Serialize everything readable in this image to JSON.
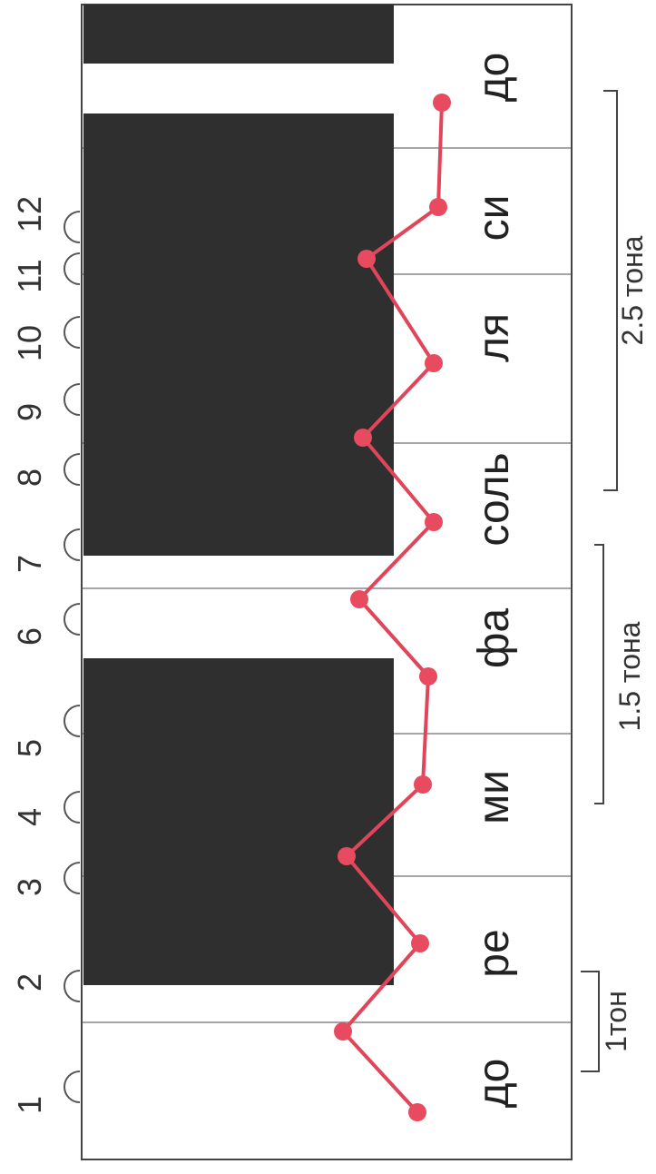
{
  "semitone_numbers": [
    "1",
    "2",
    "3",
    "4",
    "5",
    "6",
    "7",
    "8",
    "9",
    "10",
    "11",
    "12"
  ],
  "note_names": [
    "до",
    "ре",
    "ми",
    "фа",
    "соль",
    "ля",
    "си",
    "до"
  ],
  "interval_labels": [
    "1тон",
    "1.5 тона",
    "2.5 тона"
  ],
  "colors": {
    "black_key": "#2f2f2f",
    "white_key_border": "#888888",
    "keyboard_border": "#444444",
    "path_line": "#e0455a",
    "path_dot": "#e84a5f",
    "arc": "#555555"
  }
}
